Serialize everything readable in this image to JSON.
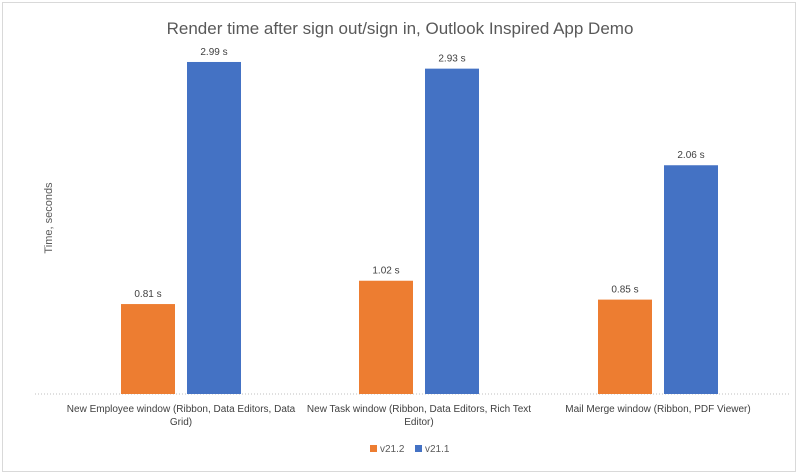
{
  "chart_data": {
    "type": "bar",
    "title": "Render time after sign out/sign in, Outlook Inspired App Demo",
    "xlabel": "",
    "ylabel": "Time, seconds",
    "ylim": [
      0,
      3.35
    ],
    "grid": false,
    "legend_position": "bottom",
    "categories": [
      [
        "New Employee window (Ribbon, Data Editors, Data",
        "Grid)"
      ],
      [
        "New Task window (Ribbon, Data Editors, Rich Text",
        "Editor)"
      ],
      [
        "Mail Merge window (Ribbon, PDF Viewer)"
      ]
    ],
    "series": [
      {
        "name": "v21.2",
        "color": "#ED7D31",
        "values": [
          0.81,
          1.02,
          0.85
        ],
        "labels": [
          "0.81 s",
          "1.02 s",
          "0.85 s"
        ]
      },
      {
        "name": "v21.1",
        "color": "#4472C4",
        "values": [
          2.99,
          2.93,
          2.06
        ],
        "labels": [
          "2.99 s",
          "2.93 s",
          "2.06 s"
        ]
      }
    ]
  }
}
